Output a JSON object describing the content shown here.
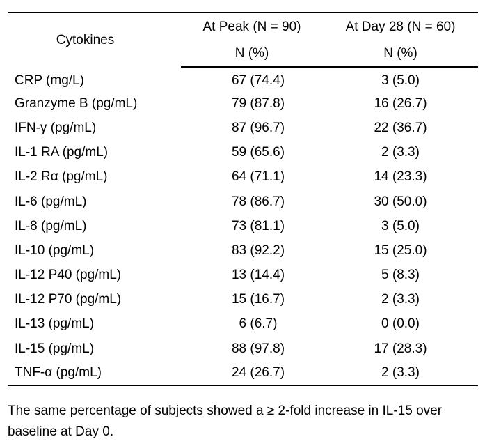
{
  "table": {
    "headers": {
      "cytokines": "Cytokines",
      "peak": "At Peak (N = 90)",
      "day28": "At Day 28 (N = 60)",
      "peak_unit": "N (%)",
      "day28_unit": "N (%)"
    },
    "rows": [
      {
        "name": "CRP (mg/L)",
        "peak": "67 (74.4)",
        "day28": "3 (5.0)"
      },
      {
        "name": "Granzyme B (pg/mL)",
        "peak": "79 (87.8)",
        "day28": "16 (26.7)"
      },
      {
        "name": "IFN-γ (pg/mL)",
        "peak": "87 (96.7)",
        "day28": "22 (36.7)"
      },
      {
        "name": "IL-1 RA (pg/mL)",
        "peak": "59 (65.6)",
        "day28": "2 (3.3)"
      },
      {
        "name": "IL-2 Rα (pg/mL)",
        "peak": "64 (71.1)",
        "day28": "14 (23.3)"
      },
      {
        "name": "IL-6 (pg/mL)",
        "peak": "78 (86.7)",
        "day28": "30 (50.0)"
      },
      {
        "name": "IL-8 (pg/mL)",
        "peak": "73 (81.1)",
        "day28": "3 (5.0)"
      },
      {
        "name": "IL-10 (pg/mL)",
        "peak": "83 (92.2)",
        "day28": "15 (25.0)"
      },
      {
        "name": "IL-12 P40 (pg/mL)",
        "peak": "13 (14.4)",
        "day28": "5 (8.3)"
      },
      {
        "name": "IL-12 P70 (pg/mL)",
        "peak": "15 (16.7)",
        "day28": "2 (3.3)"
      },
      {
        "name": "IL-13 (pg/mL)",
        "peak": "6 (6.7)",
        "day28": "0 (0.0)"
      },
      {
        "name": "IL-15 (pg/mL)",
        "peak": "88 (97.8)",
        "day28": "17 (28.3)"
      },
      {
        "name": "TNF-α (pg/mL)",
        "peak": "24 (26.7)",
        "day28": "2 (3.3)"
      }
    ]
  },
  "footnote": {
    "line1": "The same percentage of subjects showed a ≥ 2-fold increase in IL-15 over",
    "line2": "baseline at Day 0."
  }
}
